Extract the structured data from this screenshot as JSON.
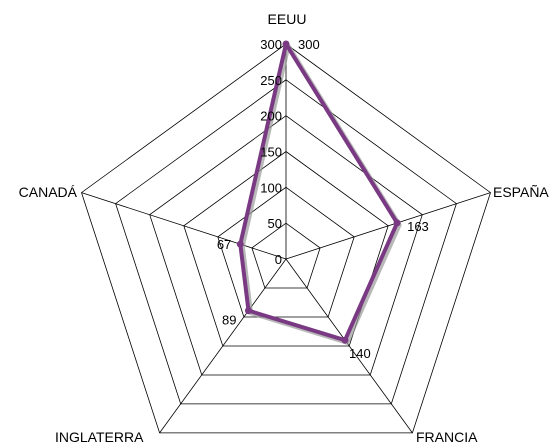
{
  "chart_data": {
    "type": "radar",
    "title": "",
    "categories": [
      "EEUU",
      "ESPAÑA",
      "FRANCIA",
      "INGLATERRA",
      "CANADÁ"
    ],
    "series": [
      {
        "values": [
          300,
          163,
          140,
          89,
          67
        ]
      }
    ],
    "rlim": [
      0,
      300
    ],
    "ticks": [
      0,
      50,
      100,
      150,
      200,
      250,
      300
    ],
    "tick_labels": [
      "0",
      "50",
      "100",
      "150",
      "200",
      "250",
      "300"
    ],
    "data_labels": [
      "300",
      "163",
      "140",
      "89",
      "67"
    ],
    "grid": true,
    "legend": "none",
    "colors": {
      "series_line": "#7a3a83",
      "series_shadow": "#9a9a9a",
      "grid": "#000000",
      "background": "#ffffff"
    }
  }
}
